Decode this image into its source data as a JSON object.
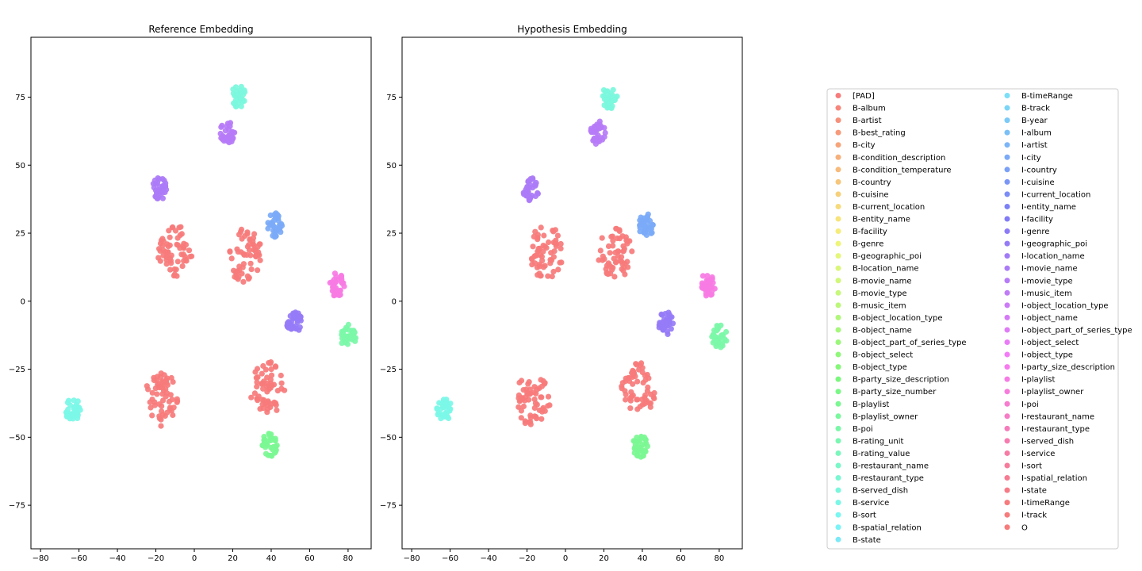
{
  "chart_data": [
    {
      "type": "scatter",
      "title": "Reference Embedding",
      "xlabel": "",
      "ylabel": "",
      "xlim": [
        -85,
        92
      ],
      "ylim": [
        -91,
        97
      ],
      "xticks": [
        -80,
        -60,
        -40,
        -20,
        0,
        20,
        40,
        60,
        80
      ],
      "yticks": [
        -75,
        -50,
        -25,
        0,
        25,
        50,
        75
      ],
      "grid": false,
      "cluster_centers": [
        {
          "label": "I-playlist",
          "x": 74,
          "y": 6
        },
        {
          "label": "I-movie_name",
          "x": -18,
          "y": 41
        },
        {
          "label": "I-movie_type",
          "x": 17,
          "y": 62
        },
        {
          "label": "B-served_dish",
          "x": 23,
          "y": 75
        },
        {
          "label": "B-poi",
          "x": 80,
          "y": -13
        },
        {
          "label": "B-playlist",
          "x": 39,
          "y": -53
        },
        {
          "label": "I-geographic_poi",
          "x": 52,
          "y": -8
        },
        {
          "label": "I-city",
          "x": 42,
          "y": 28
        },
        {
          "label": "B-service",
          "x": -63,
          "y": -40
        },
        {
          "label": "O",
          "x": 26,
          "y": 17
        },
        {
          "label": "O",
          "x": -10,
          "y": 18
        },
        {
          "label": "O",
          "x": 38,
          "y": -32
        },
        {
          "label": "O",
          "x": -17,
          "y": -36
        }
      ]
    },
    {
      "type": "scatter",
      "title": "Hypothesis Embedding",
      "xlabel": "",
      "ylabel": "",
      "xlim": [
        -85,
        92
      ],
      "ylim": [
        -91,
        97
      ],
      "xticks": [
        -80,
        -60,
        -40,
        -20,
        0,
        20,
        40,
        60,
        80
      ],
      "yticks": [
        -75,
        -50,
        -25,
        0,
        25,
        50,
        75
      ],
      "grid": false,
      "cluster_centers": [
        {
          "label": "I-playlist",
          "x": 74,
          "y": 6
        },
        {
          "label": "I-movie_name",
          "x": -18,
          "y": 41
        },
        {
          "label": "I-movie_type",
          "x": 17,
          "y": 62
        },
        {
          "label": "B-served_dish",
          "x": 23,
          "y": 75
        },
        {
          "label": "B-poi",
          "x": 80,
          "y": -13
        },
        {
          "label": "B-playlist",
          "x": 39,
          "y": -53
        },
        {
          "label": "I-geographic_poi",
          "x": 52,
          "y": -8
        },
        {
          "label": "I-city",
          "x": 42,
          "y": 28
        },
        {
          "label": "B-service",
          "x": -63,
          "y": -40
        },
        {
          "label": "O",
          "x": 26,
          "y": 17
        },
        {
          "label": "O",
          "x": -10,
          "y": 18
        },
        {
          "label": "O",
          "x": 38,
          "y": -32
        },
        {
          "label": "O",
          "x": -17,
          "y": -36
        }
      ]
    }
  ],
  "legend": {
    "placement": "right",
    "entries": [
      {
        "label": "[PAD]",
        "color": "#f77b7b"
      },
      {
        "label": "B-album",
        "color": "#f7857b"
      },
      {
        "label": "B-artist",
        "color": "#f7907b"
      },
      {
        "label": "B-best_rating",
        "color": "#f79a7b"
      },
      {
        "label": "B-city",
        "color": "#f7a47b"
      },
      {
        "label": "B-condition_description",
        "color": "#f7b07b"
      },
      {
        "label": "B-condition_temperature",
        "color": "#f7bb7b"
      },
      {
        "label": "B-country",
        "color": "#f7c67b"
      },
      {
        "label": "B-cuisine",
        "color": "#f7d07b"
      },
      {
        "label": "B-current_location",
        "color": "#f7da7b"
      },
      {
        "label": "B-entity_name",
        "color": "#f7e47b"
      },
      {
        "label": "B-facility",
        "color": "#f5ec7b"
      },
      {
        "label": "B-genre",
        "color": "#eff57b"
      },
      {
        "label": "B-geographic_poi",
        "color": "#e5f77b"
      },
      {
        "label": "B-location_name",
        "color": "#dbf77b"
      },
      {
        "label": "B-movie_name",
        "color": "#d1f77b"
      },
      {
        "label": "B-movie_type",
        "color": "#c7f77b"
      },
      {
        "label": "B-music_item",
        "color": "#bcf77b"
      },
      {
        "label": "B-object_location_type",
        "color": "#b1f77b"
      },
      {
        "label": "B-object_name",
        "color": "#a6f77b"
      },
      {
        "label": "B-object_part_of_series_type",
        "color": "#9bf77b"
      },
      {
        "label": "B-object_select",
        "color": "#90f77b"
      },
      {
        "label": "B-object_type",
        "color": "#86f77b"
      },
      {
        "label": "B-party_size_description",
        "color": "#7bf77e"
      },
      {
        "label": "B-party_size_number",
        "color": "#7bf788"
      },
      {
        "label": "B-playlist",
        "color": "#7bf793"
      },
      {
        "label": "B-playlist_owner",
        "color": "#7bf79d"
      },
      {
        "label": "B-poi",
        "color": "#7bf7a8"
      },
      {
        "label": "B-rating_unit",
        "color": "#7bf7b3"
      },
      {
        "label": "B-rating_value",
        "color": "#7bf7bd"
      },
      {
        "label": "B-restaurant_name",
        "color": "#7bf7c8"
      },
      {
        "label": "B-restaurant_type",
        "color": "#7bf7d2"
      },
      {
        "label": "B-served_dish",
        "color": "#7bf7dd"
      },
      {
        "label": "B-service",
        "color": "#7bf7e7"
      },
      {
        "label": "B-sort",
        "color": "#7bf7f1"
      },
      {
        "label": "B-spatial_relation",
        "color": "#7bf3f7"
      },
      {
        "label": "B-state",
        "color": "#7be9f7"
      },
      {
        "label": "B-timeRange",
        "color": "#7bdff7"
      },
      {
        "label": "B-track",
        "color": "#7bd5f7"
      },
      {
        "label": "B-year",
        "color": "#7bcaf7"
      },
      {
        "label": "I-album",
        "color": "#7bbff7"
      },
      {
        "label": "I-artist",
        "color": "#7bb5f7"
      },
      {
        "label": "I-city",
        "color": "#7baaf7"
      },
      {
        "label": "I-country",
        "color": "#7ba0f7"
      },
      {
        "label": "I-cuisine",
        "color": "#7b95f7"
      },
      {
        "label": "I-current_location",
        "color": "#7b8bf7"
      },
      {
        "label": "I-entity_name",
        "color": "#7b80f7"
      },
      {
        "label": "I-facility",
        "color": "#817bf7"
      },
      {
        "label": "I-genre",
        "color": "#8c7bf7"
      },
      {
        "label": "I-geographic_poi",
        "color": "#967bf7"
      },
      {
        "label": "I-location_name",
        "color": "#a17bf7"
      },
      {
        "label": "I-movie_name",
        "color": "#ab7bf7"
      },
      {
        "label": "I-movie_type",
        "color": "#b67bf7"
      },
      {
        "label": "I-music_item",
        "color": "#c07bf7"
      },
      {
        "label": "I-object_location_type",
        "color": "#cb7bf7"
      },
      {
        "label": "I-object_name",
        "color": "#d57bf7"
      },
      {
        "label": "I-object_part_of_series_type",
        "color": "#df7bf7"
      },
      {
        "label": "I-object_select",
        "color": "#ea7bf7"
      },
      {
        "label": "I-object_type",
        "color": "#f47bf7"
      },
      {
        "label": "I-party_size_description",
        "color": "#f77bef"
      },
      {
        "label": "I-playlist",
        "color": "#f77be4"
      },
      {
        "label": "I-playlist_owner",
        "color": "#f77bda"
      },
      {
        "label": "I-poi",
        "color": "#f77bcf"
      },
      {
        "label": "I-restaurant_name",
        "color": "#f77bc5"
      },
      {
        "label": "I-restaurant_type",
        "color": "#f77bba"
      },
      {
        "label": "I-served_dish",
        "color": "#f77bb0"
      },
      {
        "label": "I-service",
        "color": "#f77ba5"
      },
      {
        "label": "I-sort",
        "color": "#f77b9b"
      },
      {
        "label": "I-spatial_relation",
        "color": "#f77b91"
      },
      {
        "label": "I-state",
        "color": "#f77b87"
      },
      {
        "label": "I-timeRange",
        "color": "#f77b7d"
      },
      {
        "label": "I-track",
        "color": "#f77b7b"
      },
      {
        "label": "O",
        "color": "#f77b7b"
      }
    ]
  }
}
